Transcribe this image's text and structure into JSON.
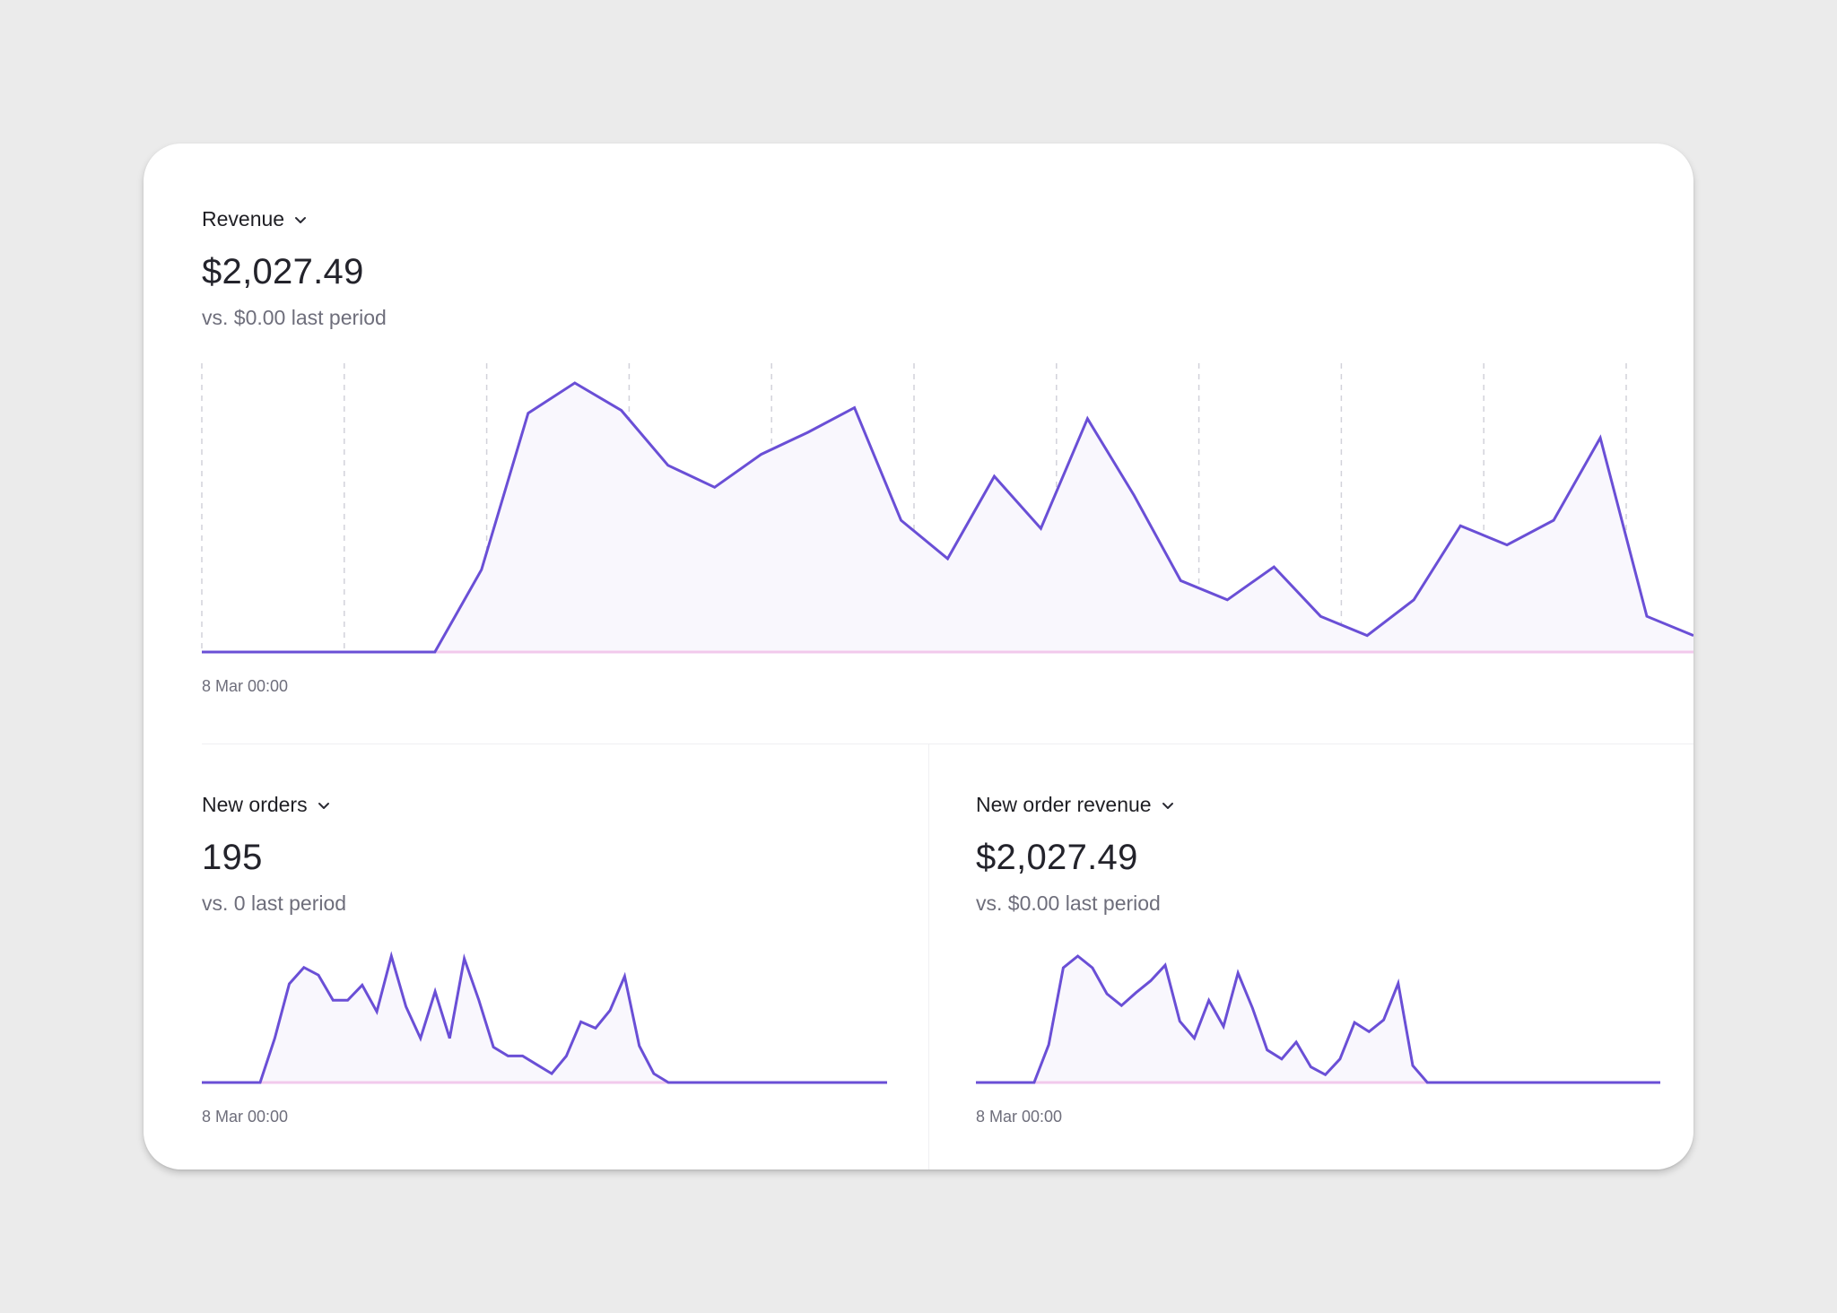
{
  "revenue": {
    "label": "Revenue",
    "value": "$2,027.49",
    "compare": "vs. $0.00 last period"
  },
  "new_orders": {
    "label": "New orders",
    "value": "195",
    "compare": "vs. 0 last period"
  },
  "new_order_revenue": {
    "label": "New order revenue",
    "value": "$2,027.49",
    "compare": "vs. $0.00 last period"
  },
  "colors": {
    "line": "#6a4fd6",
    "fill": "#f9f7fd",
    "baseline": "#f2c9ec",
    "grid": "#d2d2da"
  },
  "chart_data": [
    {
      "type": "area",
      "title": "Revenue",
      "x_tick_labels": [
        "8 Mar 00:00"
      ],
      "grid": true,
      "series": [
        {
          "values": [
            0,
            0,
            0,
            0,
            0,
            0,
            30,
            87,
            98,
            88,
            68,
            60,
            72,
            80,
            89,
            48,
            34,
            64,
            45,
            85,
            57,
            26,
            19,
            31,
            13,
            6,
            19,
            46,
            39,
            48,
            78,
            13,
            6
          ]
        }
      ]
    },
    {
      "type": "area",
      "title": "New orders",
      "x_tick_labels": [
        "8 Mar 00:00"
      ],
      "grid": false,
      "series": [
        {
          "values": [
            0,
            0,
            0,
            0,
            0,
            0.35,
            0.78,
            0.91,
            0.85,
            0.65,
            0.65,
            0.77,
            0.56,
            1.0,
            0.6,
            0.35,
            0.72,
            0.35,
            0.98,
            0.65,
            0.28,
            0.21,
            0.21,
            0.14,
            0.07,
            0.21,
            0.48,
            0.43,
            0.57,
            0.84,
            0.29,
            0.07,
            0,
            0,
            0,
            0,
            0,
            0,
            0,
            0,
            0,
            0,
            0,
            0,
            0,
            0,
            0,
            0
          ]
        }
      ]
    },
    {
      "type": "area",
      "title": "New order revenue",
      "x_tick_labels": [
        "8 Mar 00:00"
      ],
      "grid": false,
      "series": [
        {
          "values": [
            0,
            0,
            0,
            0,
            0,
            0.29,
            0.88,
            0.97,
            0.88,
            0.68,
            0.59,
            0.69,
            0.78,
            0.9,
            0.47,
            0.34,
            0.63,
            0.43,
            0.84,
            0.57,
            0.25,
            0.18,
            0.31,
            0.12,
            0.06,
            0.18,
            0.46,
            0.39,
            0.48,
            0.76,
            0.13,
            0,
            0,
            0,
            0,
            0,
            0,
            0,
            0,
            0,
            0,
            0,
            0,
            0,
            0,
            0,
            0,
            0
          ]
        }
      ]
    }
  ]
}
